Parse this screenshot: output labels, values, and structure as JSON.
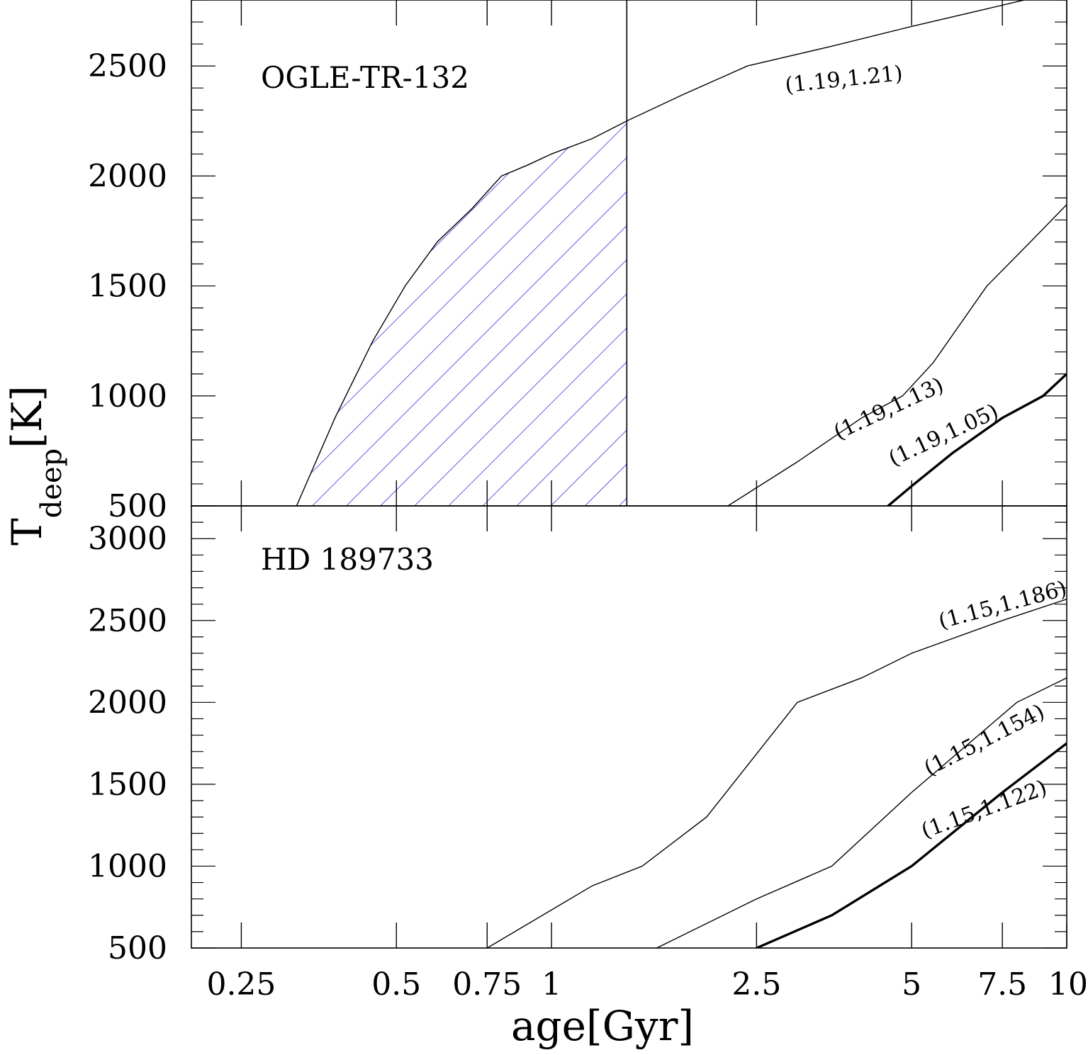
{
  "figure": {
    "xlabel": "age[Gyr]",
    "ylabel_main": "T",
    "ylabel_sub": "deep",
    "ylabel_unit": "[K]"
  },
  "chart_data": [
    {
      "type": "line",
      "title": "OGLE-TR-132",
      "xscale": "log",
      "xlim": [
        0.2,
        10
      ],
      "ylim": [
        500,
        2800
      ],
      "x_ticks": [
        0.25,
        0.5,
        0.75,
        1,
        2.5,
        5,
        7.5,
        10
      ],
      "y_ticks": [
        500,
        1000,
        1500,
        2000,
        2500
      ],
      "y_tick_labels": [
        "500",
        "1000",
        "1500",
        "2000",
        "2500"
      ],
      "vertical_line_x": 1.4,
      "shaded_region": {
        "description": "hatched region under (1.19,1.21) curve for age < 1.4 Gyr",
        "color": "#3333dd"
      },
      "series": [
        {
          "name": "(1.19,1.21)",
          "bold": false,
          "label_pos": [
            2.85,
            2380
          ],
          "label_rot": -6,
          "x": [
            0.32,
            0.38,
            0.45,
            0.52,
            0.6,
            0.7,
            0.8,
            0.9,
            1.0,
            1.2,
            1.4,
            1.8,
            2.4,
            3.5,
            5.0,
            7.0,
            9.0
          ],
          "y": [
            500,
            900,
            1250,
            1500,
            1700,
            1850,
            2000,
            2050,
            2100,
            2170,
            2250,
            2370,
            2500,
            2590,
            2680,
            2760,
            2820
          ]
        },
        {
          "name": "(1.19,1.13)",
          "bold": false,
          "label_pos": [
            3.6,
            800
          ],
          "label_rot": -25,
          "x": [
            2.2,
            3.0,
            4.0,
            4.8,
            5.5,
            7.0,
            8.5,
            10
          ],
          "y": [
            500,
            700,
            900,
            1000,
            1150,
            1500,
            1700,
            1870
          ]
        },
        {
          "name": "(1.19,1.05)",
          "bold": true,
          "label_pos": [
            4.6,
            680
          ],
          "label_rot": -25,
          "x": [
            4.5,
            5.0,
            6.0,
            7.5,
            9.0,
            10
          ],
          "y": [
            500,
            590,
            740,
            900,
            1000,
            1100
          ]
        }
      ]
    },
    {
      "type": "line",
      "title": "HD 189733",
      "xscale": "log",
      "xlim": [
        0.2,
        10
      ],
      "ylim": [
        500,
        3200
      ],
      "x_ticks": [
        0.25,
        0.5,
        0.75,
        1,
        2.5,
        5,
        7.5,
        10
      ],
      "x_tick_labels": [
        "0.25",
        "0.5",
        "0.75",
        "1",
        "2.5",
        "5",
        "7.5",
        "10"
      ],
      "y_ticks": [
        500,
        1000,
        1500,
        2000,
        2500,
        3000
      ],
      "y_tick_labels": [
        "500",
        "1000",
        "1500",
        "2000",
        "2500",
        "3000"
      ],
      "series": [
        {
          "name": "(1.15,1.186)",
          "bold": false,
          "label_pos": [
            5.7,
            2450
          ],
          "label_rot": -15,
          "x": [
            0.75,
            1.2,
            1.5,
            2.0,
            3.0,
            4.0,
            5.0,
            7.5,
            10
          ],
          "y": [
            500,
            880,
            1000,
            1300,
            2000,
            2150,
            2300,
            2500,
            2630
          ]
        },
        {
          "name": "(1.15,1.154)",
          "bold": false,
          "label_pos": [
            5.4,
            1550
          ],
          "label_rot": -27,
          "x": [
            1.6,
            2.5,
            3.5,
            5.0,
            8.0,
            10
          ],
          "y": [
            500,
            800,
            1000,
            1450,
            2000,
            2150
          ]
        },
        {
          "name": "(1.15,1.122)",
          "bold": true,
          "label_pos": [
            5.3,
            1170
          ],
          "label_rot": -20,
          "x": [
            2.5,
            3.5,
            5.0,
            7.5,
            10
          ],
          "y": [
            500,
            700,
            1000,
            1450,
            1750
          ]
        }
      ]
    }
  ]
}
